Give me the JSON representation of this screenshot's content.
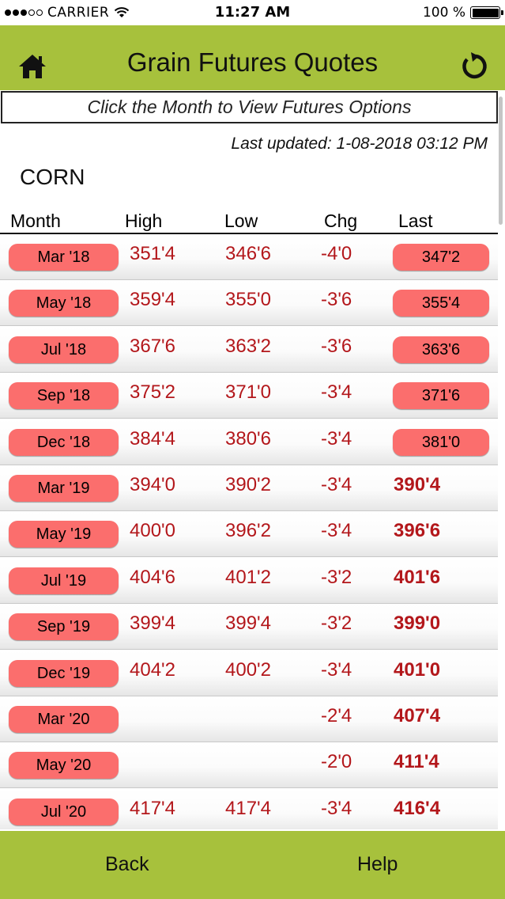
{
  "status_bar": {
    "carrier": "CARRIER",
    "time": "11:27 AM",
    "battery": "100 %"
  },
  "header": {
    "title": "Grain Futures Quotes",
    "home_icon": "home-icon",
    "refresh_icon": "refresh-icon"
  },
  "banner": "Click the Month to View Futures Options",
  "last_updated": "Last updated: 1-08-2018 03:12 PM",
  "commodity": "CORN",
  "columns": {
    "month": "Month",
    "high": "High",
    "low": "Low",
    "chg": "Chg",
    "last": "Last"
  },
  "rows": [
    {
      "month": "Mar '18",
      "high": "351'4",
      "low": "346'6",
      "chg": "-4'0",
      "last": "347'2",
      "last_button": true
    },
    {
      "month": "May '18",
      "high": "359'4",
      "low": "355'0",
      "chg": "-3'6",
      "last": "355'4",
      "last_button": true
    },
    {
      "month": "Jul '18",
      "high": "367'6",
      "low": "363'2",
      "chg": "-3'6",
      "last": "363'6",
      "last_button": true
    },
    {
      "month": "Sep '18",
      "high": "375'2",
      "low": "371'0",
      "chg": "-3'4",
      "last": "371'6",
      "last_button": true
    },
    {
      "month": "Dec '18",
      "high": "384'4",
      "low": "380'6",
      "chg": "-3'4",
      "last": "381'0",
      "last_button": true
    },
    {
      "month": "Mar '19",
      "high": "394'0",
      "low": "390'2",
      "chg": "-3'4",
      "last": "390'4",
      "last_button": false
    },
    {
      "month": "May '19",
      "high": "400'0",
      "low": "396'2",
      "chg": "-3'4",
      "last": "396'6",
      "last_button": false
    },
    {
      "month": "Jul '19",
      "high": "404'6",
      "low": "401'2",
      "chg": "-3'2",
      "last": "401'6",
      "last_button": false
    },
    {
      "month": "Sep '19",
      "high": "399'4",
      "low": "399'4",
      "chg": "-3'2",
      "last": "399'0",
      "last_button": false
    },
    {
      "month": "Dec '19",
      "high": "404'2",
      "low": "400'2",
      "chg": "-3'4",
      "last": "401'0",
      "last_button": false
    },
    {
      "month": "Mar '20",
      "high": "",
      "low": "",
      "chg": "-2'4",
      "last": "407'4",
      "last_button": false
    },
    {
      "month": "May '20",
      "high": "",
      "low": "",
      "chg": "-2'0",
      "last": "411'4",
      "last_button": false
    },
    {
      "month": "Jul '20",
      "high": "417'4",
      "low": "417'4",
      "chg": "-3'4",
      "last": "416'4",
      "last_button": false
    }
  ],
  "footer": {
    "back": "Back",
    "help": "Help"
  },
  "colors": {
    "header_green": "#a7c13c",
    "button_red": "#fb6e6d",
    "value_red": "#b3171b"
  }
}
